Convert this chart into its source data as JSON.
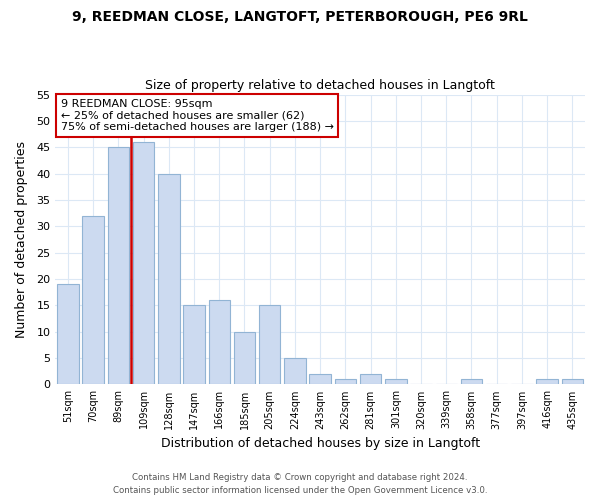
{
  "title": "9, REEDMAN CLOSE, LANGTOFT, PETERBOROUGH, PE6 9RL",
  "subtitle": "Size of property relative to detached houses in Langtoft",
  "xlabel": "Distribution of detached houses by size in Langtoft",
  "ylabel": "Number of detached properties",
  "bar_labels": [
    "51sqm",
    "70sqm",
    "89sqm",
    "109sqm",
    "128sqm",
    "147sqm",
    "166sqm",
    "185sqm",
    "205sqm",
    "224sqm",
    "243sqm",
    "262sqm",
    "281sqm",
    "301sqm",
    "320sqm",
    "339sqm",
    "358sqm",
    "377sqm",
    "397sqm",
    "416sqm",
    "435sqm"
  ],
  "bar_values": [
    19,
    32,
    45,
    46,
    40,
    15,
    16,
    10,
    15,
    5,
    2,
    1,
    2,
    1,
    0,
    0,
    1,
    0,
    0,
    1,
    1
  ],
  "bar_color": "#ccdaf0",
  "bar_edge_color": "#92b4d4",
  "vline_color": "#cc0000",
  "vline_x": 2.5,
  "annotation_line1": "9 REEDMAN CLOSE: 95sqm",
  "annotation_line2": "← 25% of detached houses are smaller (62)",
  "annotation_line3": "75% of semi-detached houses are larger (188) →",
  "annotation_box_color": "#ffffff",
  "annotation_box_edge": "#cc0000",
  "ylim": [
    0,
    55
  ],
  "yticks": [
    0,
    5,
    10,
    15,
    20,
    25,
    30,
    35,
    40,
    45,
    50,
    55
  ],
  "footer1": "Contains HM Land Registry data © Crown copyright and database right 2024.",
  "footer2": "Contains public sector information licensed under the Open Government Licence v3.0.",
  "bg_color": "#ffffff",
  "grid_color": "#dce8f5"
}
